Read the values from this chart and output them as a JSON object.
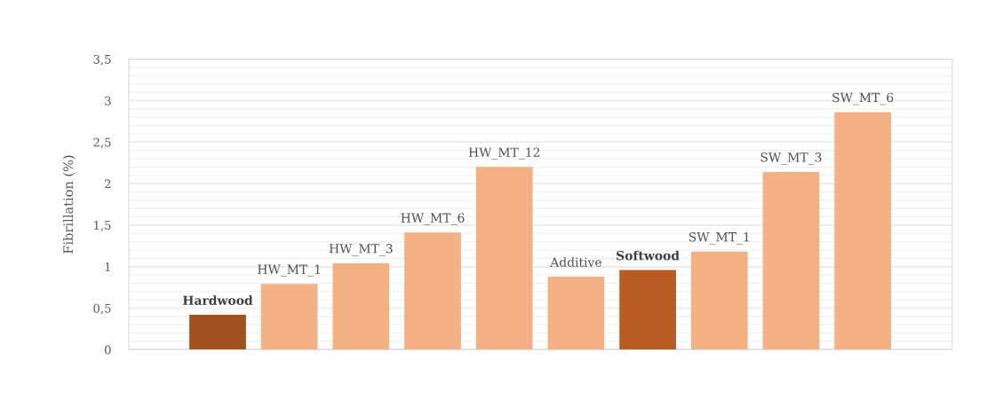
{
  "chart_data": {
    "type": "bar",
    "ylabel": "Fibrillation (%)",
    "categories": [
      "Hardwood",
      "HW_MT_1",
      "HW_MT_3",
      "HW_MT_6",
      "HW_MT_12",
      "Additive",
      "Softwood",
      "SW_MT_1",
      "SW_MT_3",
      "SW_MT_6"
    ],
    "values": [
      0.42,
      0.79,
      1.04,
      1.41,
      2.2,
      0.88,
      0.96,
      1.18,
      2.14,
      2.86
    ],
    "colors": [
      "#a0521e",
      "#f4b183",
      "#f4b183",
      "#f4b183",
      "#f4b183",
      "#f4b183",
      "#b75d23",
      "#f4b183",
      "#f4b183",
      "#f4b183"
    ],
    "ylim": [
      0,
      3.5
    ],
    "yticks": [
      0,
      {
        "value": 0.5,
        "label": "0,5"
      },
      1,
      {
        "value": 1.5,
        "label": "1,5"
      },
      2,
      {
        "value": 2.5,
        "label": "2,5"
      },
      3,
      {
        "value": 3.5,
        "label": "3,5"
      }
    ],
    "grid": "y"
  }
}
